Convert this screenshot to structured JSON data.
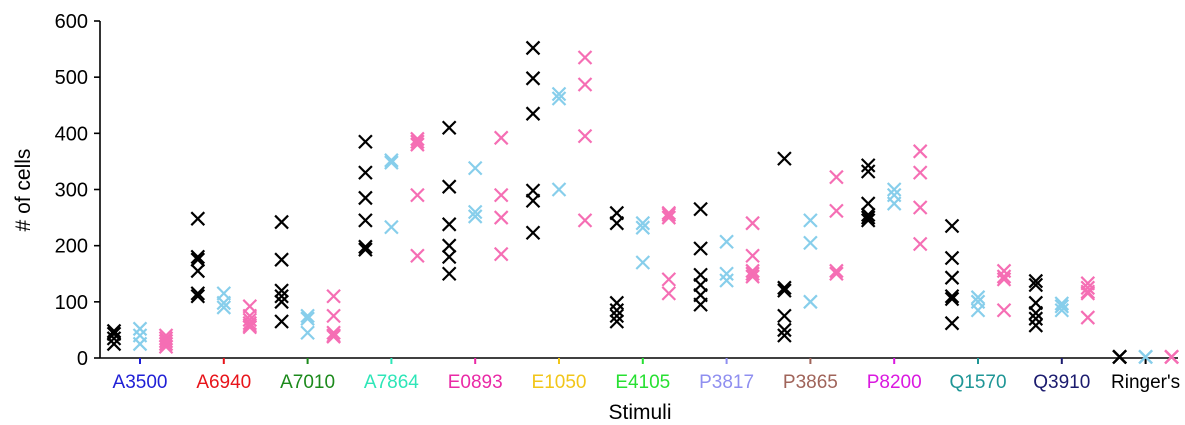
{
  "chart_data": {
    "type": "scatter",
    "title": "",
    "xlabel": "Stimuli",
    "ylabel": "# of cells",
    "ylim": [
      0,
      600
    ],
    "yticks": [
      0,
      100,
      200,
      300,
      400,
      500,
      600
    ],
    "grid": false,
    "legend": "none",
    "marker": "x",
    "categories": [
      {
        "label": "A3500",
        "color": "#1f1fd6"
      },
      {
        "label": "A6940",
        "color": "#e8151b"
      },
      {
        "label": "A7010",
        "color": "#1c8a1c"
      },
      {
        "label": "A7864",
        "color": "#2ee6b8"
      },
      {
        "label": "E0893",
        "color": "#ea2aa6"
      },
      {
        "label": "E1050",
        "color": "#f2c619"
      },
      {
        "label": "E4105",
        "color": "#27e032"
      },
      {
        "label": "P3817",
        "color": "#8f8ff0"
      },
      {
        "label": "P3865",
        "color": "#a0645a"
      },
      {
        "label": "P8200",
        "color": "#da1ae0"
      },
      {
        "label": "Q1570",
        "color": "#1f9696"
      },
      {
        "label": "Q3910",
        "color": "#1b1b6e"
      },
      {
        "label": "Ringer's",
        "color": "#000000"
      }
    ],
    "series": [
      {
        "color": "#000000",
        "values": [
          [
            48,
            43,
            35,
            25
          ],
          [
            248,
            180,
            175,
            155,
            115,
            110
          ],
          [
            242,
            175,
            120,
            110,
            100,
            65
          ],
          [
            385,
            330,
            285,
            245,
            198,
            193
          ],
          [
            410,
            305,
            238,
            200,
            180,
            150
          ],
          [
            552,
            498,
            435,
            298,
            280,
            223
          ],
          [
            258,
            240,
            98,
            85,
            75,
            65
          ],
          [
            265,
            195,
            148,
            130,
            112,
            95
          ],
          [
            355,
            125,
            120,
            75,
            50,
            40
          ],
          [
            343,
            332,
            275,
            255,
            250,
            245
          ],
          [
            235,
            178,
            143,
            110,
            105,
            62
          ],
          [
            137,
            130,
            98,
            80,
            70,
            58
          ],
          [
            2,
            2,
            2,
            2,
            2,
            2
          ]
        ]
      },
      {
        "color": "#87ceeb",
        "values": [
          [
            52,
            40,
            25
          ],
          [
            115,
            98,
            90
          ],
          [
            75,
            70,
            45
          ],
          [
            352,
            348,
            233
          ],
          [
            338,
            260,
            252
          ],
          [
            470,
            462,
            300
          ],
          [
            240,
            232,
            170
          ],
          [
            207,
            150,
            138
          ],
          [
            245,
            205,
            100
          ],
          [
            300,
            290,
            275
          ],
          [
            108,
            100,
            85
          ],
          [
            97,
            92,
            85
          ],
          [
            2,
            2,
            2
          ]
        ]
      },
      {
        "color": "#f56eb4",
        "values": [
          [
            40,
            35,
            30,
            25,
            20
          ],
          [
            92,
            75,
            68,
            62,
            58,
            55
          ],
          [
            110,
            75,
            45,
            40,
            38
          ],
          [
            390,
            385,
            380,
            290,
            182
          ],
          [
            392,
            290,
            250,
            185
          ],
          [
            535,
            487,
            395,
            245
          ],
          [
            258,
            255,
            250,
            140,
            115
          ],
          [
            240,
            182,
            155,
            150,
            145
          ],
          [
            322,
            262,
            155,
            150
          ],
          [
            368,
            330,
            268,
            203
          ],
          [
            155,
            145,
            140,
            85
          ],
          [
            133,
            125,
            118,
            115,
            72
          ],
          [
            2,
            2,
            2,
            2,
            2
          ]
        ]
      }
    ]
  }
}
